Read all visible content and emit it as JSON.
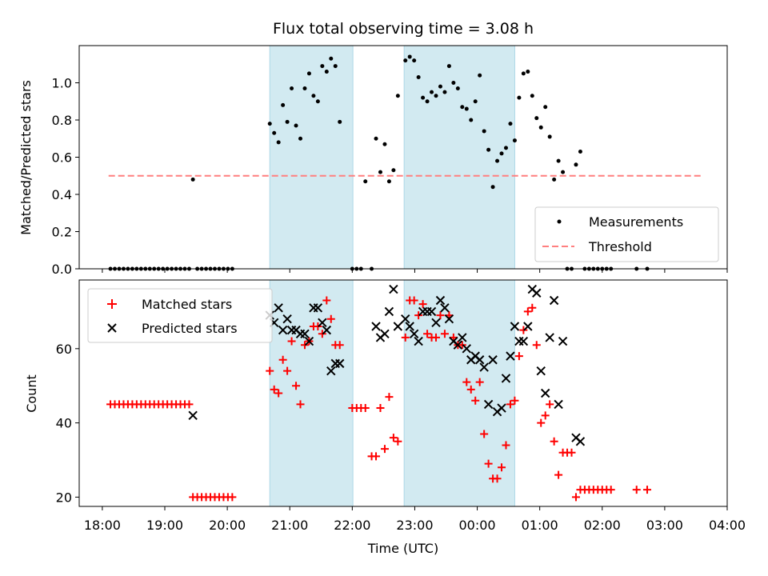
{
  "chart_data": {
    "type": "scatter",
    "title": "Flux total observing time = 3.08 h",
    "xlabel": "Time (UTC)",
    "x_ticks": [
      "18:00",
      "19:00",
      "20:00",
      "21:00",
      "22:00",
      "23:00",
      "00:00",
      "01:00",
      "02:00",
      "03:00",
      "04:00"
    ],
    "x_range_hours": [
      17.63,
      28.0
    ],
    "shaded_spans": [
      [
        20.68,
        22.01
      ],
      [
        22.83,
        24.6
      ]
    ],
    "shade_color": "#add8e6",
    "top": {
      "ylabel": "Matched/Predicted stars",
      "ylim": [
        0,
        1.2
      ],
      "yticks": [
        "0.0",
        "0.2",
        "0.4",
        "0.6",
        "0.8",
        "1.0"
      ],
      "threshold": {
        "name": "Threshold",
        "value": 0.5,
        "x_range": [
          18.1,
          27.6
        ],
        "color": "#ff7f7f"
      },
      "measurements_name": "Measurements",
      "measurements_color": "#000000",
      "measurements": [
        [
          18.13,
          0
        ],
        [
          18.2,
          0
        ],
        [
          18.27,
          0
        ],
        [
          18.34,
          0
        ],
        [
          18.41,
          0
        ],
        [
          18.48,
          0
        ],
        [
          18.55,
          0
        ],
        [
          18.62,
          0
        ],
        [
          18.69,
          0
        ],
        [
          18.76,
          0
        ],
        [
          18.83,
          0
        ],
        [
          18.9,
          0
        ],
        [
          18.97,
          0
        ],
        [
          19.04,
          0
        ],
        [
          19.11,
          0
        ],
        [
          19.18,
          0
        ],
        [
          19.25,
          0
        ],
        [
          19.32,
          0
        ],
        [
          19.39,
          0
        ],
        [
          19.45,
          0.48
        ],
        [
          19.52,
          0
        ],
        [
          19.59,
          0
        ],
        [
          19.66,
          0
        ],
        [
          19.73,
          0
        ],
        [
          19.8,
          0
        ],
        [
          19.87,
          0
        ],
        [
          19.94,
          0
        ],
        [
          20.01,
          0
        ],
        [
          20.08,
          0
        ],
        [
          20.68,
          0.78
        ],
        [
          20.75,
          0.73
        ],
        [
          20.82,
          0.68
        ],
        [
          20.89,
          0.88
        ],
        [
          20.96,
          0.79
        ],
        [
          21.03,
          0.97
        ],
        [
          21.1,
          0.77
        ],
        [
          21.17,
          0.7
        ],
        [
          21.24,
          0.97
        ],
        [
          21.31,
          1.05
        ],
        [
          21.38,
          0.93
        ],
        [
          21.45,
          0.9
        ],
        [
          21.52,
          1.09
        ],
        [
          21.59,
          1.06
        ],
        [
          21.66,
          1.13
        ],
        [
          21.73,
          1.09
        ],
        [
          21.8,
          0.79
        ],
        [
          22.0,
          0
        ],
        [
          22.07,
          0
        ],
        [
          22.14,
          0
        ],
        [
          22.21,
          0.47
        ],
        [
          22.31,
          0
        ],
        [
          22.38,
          0.7
        ],
        [
          22.45,
          0.52
        ],
        [
          22.52,
          0.67
        ],
        [
          22.59,
          0.47
        ],
        [
          22.66,
          0.53
        ],
        [
          22.73,
          0.93
        ],
        [
          22.85,
          1.12
        ],
        [
          22.92,
          1.14
        ],
        [
          22.99,
          1.12
        ],
        [
          23.06,
          1.03
        ],
        [
          23.13,
          0.92
        ],
        [
          23.2,
          0.9
        ],
        [
          23.27,
          0.95
        ],
        [
          23.34,
          0.93
        ],
        [
          23.41,
          0.98
        ],
        [
          23.48,
          0.95
        ],
        [
          23.55,
          1.09
        ],
        [
          23.62,
          1.0
        ],
        [
          23.69,
          0.97
        ],
        [
          23.76,
          0.87
        ],
        [
          23.83,
          0.86
        ],
        [
          23.9,
          0.8
        ],
        [
          23.97,
          0.9
        ],
        [
          24.04,
          1.04
        ],
        [
          24.11,
          0.74
        ],
        [
          24.18,
          0.64
        ],
        [
          24.25,
          0.44
        ],
        [
          24.32,
          0.58
        ],
        [
          24.39,
          0.62
        ],
        [
          24.46,
          0.65
        ],
        [
          24.53,
          0.78
        ],
        [
          24.6,
          0.69
        ],
        [
          24.67,
          0.92
        ],
        [
          24.74,
          1.05
        ],
        [
          24.81,
          1.06
        ],
        [
          24.88,
          0.93
        ],
        [
          24.95,
          0.81
        ],
        [
          25.02,
          0.76
        ],
        [
          25.09,
          0.87
        ],
        [
          25.16,
          0.71
        ],
        [
          25.23,
          0.48
        ],
        [
          25.3,
          0.58
        ],
        [
          25.37,
          0.52
        ],
        [
          25.44,
          0
        ],
        [
          25.51,
          0
        ],
        [
          25.58,
          0.56
        ],
        [
          25.65,
          0.63
        ],
        [
          25.72,
          0
        ],
        [
          25.79,
          0
        ],
        [
          25.86,
          0
        ],
        [
          25.93,
          0
        ],
        [
          26.0,
          0
        ],
        [
          26.07,
          0
        ],
        [
          26.14,
          0
        ],
        [
          26.55,
          0
        ],
        [
          26.72,
          0
        ]
      ]
    },
    "bottom": {
      "ylabel": "Count",
      "ylim": [
        17.5,
        78.5
      ],
      "yticks": [
        "20",
        "40",
        "60"
      ],
      "series": [
        {
          "name": "Matched stars",
          "marker": "plus",
          "color": "#ff0000",
          "points": [
            [
              18.13,
              45
            ],
            [
              18.2,
              45
            ],
            [
              18.27,
              45
            ],
            [
              18.34,
              45
            ],
            [
              18.41,
              45
            ],
            [
              18.48,
              45
            ],
            [
              18.55,
              45
            ],
            [
              18.62,
              45
            ],
            [
              18.69,
              45
            ],
            [
              18.76,
              45
            ],
            [
              18.83,
              45
            ],
            [
              18.9,
              45
            ],
            [
              18.97,
              45
            ],
            [
              19.04,
              45
            ],
            [
              19.11,
              45
            ],
            [
              19.18,
              45
            ],
            [
              19.25,
              45
            ],
            [
              19.32,
              45
            ],
            [
              19.39,
              45
            ],
            [
              19.45,
              20
            ],
            [
              19.52,
              20
            ],
            [
              19.59,
              20
            ],
            [
              19.66,
              20
            ],
            [
              19.73,
              20
            ],
            [
              19.8,
              20
            ],
            [
              19.87,
              20
            ],
            [
              19.94,
              20
            ],
            [
              20.01,
              20
            ],
            [
              20.08,
              20
            ],
            [
              20.68,
              54
            ],
            [
              20.75,
              49
            ],
            [
              20.82,
              48
            ],
            [
              20.89,
              57
            ],
            [
              20.96,
              54
            ],
            [
              21.03,
              62
            ],
            [
              21.1,
              50
            ],
            [
              21.17,
              45
            ],
            [
              21.24,
              61
            ],
            [
              21.31,
              62
            ],
            [
              21.38,
              66
            ],
            [
              21.45,
              66
            ],
            [
              21.52,
              64
            ],
            [
              21.59,
              73
            ],
            [
              21.66,
              68
            ],
            [
              21.73,
              61
            ],
            [
              21.8,
              61
            ],
            [
              22.0,
              44
            ],
            [
              22.07,
              44
            ],
            [
              22.14,
              44
            ],
            [
              22.21,
              44
            ],
            [
              22.31,
              31
            ],
            [
              22.38,
              31
            ],
            [
              22.45,
              44
            ],
            [
              22.52,
              33
            ],
            [
              22.59,
              47
            ],
            [
              22.66,
              36
            ],
            [
              22.73,
              35
            ],
            [
              22.85,
              63
            ],
            [
              22.92,
              73
            ],
            [
              22.99,
              73
            ],
            [
              23.06,
              69
            ],
            [
              23.13,
              72
            ],
            [
              23.2,
              64
            ],
            [
              23.27,
              63
            ],
            [
              23.34,
              63
            ],
            [
              23.41,
              69
            ],
            [
              23.48,
              64
            ],
            [
              23.55,
              69
            ],
            [
              23.62,
              63
            ],
            [
              23.69,
              61
            ],
            [
              23.76,
              61
            ],
            [
              23.83,
              51
            ],
            [
              23.9,
              49
            ],
            [
              23.97,
              46
            ],
            [
              24.04,
              51
            ],
            [
              24.11,
              37
            ],
            [
              24.18,
              29
            ],
            [
              24.25,
              25
            ],
            [
              24.32,
              25
            ],
            [
              24.39,
              28
            ],
            [
              24.46,
              34
            ],
            [
              24.53,
              45
            ],
            [
              24.6,
              46
            ],
            [
              24.67,
              58
            ],
            [
              24.74,
              65
            ],
            [
              24.81,
              70
            ],
            [
              24.88,
              71
            ],
            [
              24.95,
              61
            ],
            [
              25.02,
              40
            ],
            [
              25.09,
              42
            ],
            [
              25.16,
              45
            ],
            [
              25.23,
              35
            ],
            [
              25.3,
              26
            ],
            [
              25.37,
              32
            ],
            [
              25.44,
              32
            ],
            [
              25.51,
              32
            ],
            [
              25.58,
              20
            ],
            [
              25.65,
              22
            ],
            [
              25.72,
              22
            ],
            [
              25.79,
              22
            ],
            [
              25.86,
              22
            ],
            [
              25.93,
              22
            ],
            [
              26.0,
              22
            ],
            [
              26.07,
              22
            ],
            [
              26.14,
              22
            ],
            [
              26.55,
              22
            ],
            [
              26.72,
              22
            ]
          ]
        },
        {
          "name": "Predicted stars",
          "marker": "x",
          "color": "#000000",
          "points": [
            [
              19.45,
              42
            ],
            [
              20.68,
              69
            ],
            [
              20.75,
              67
            ],
            [
              20.82,
              71
            ],
            [
              20.89,
              65
            ],
            [
              20.96,
              68
            ],
            [
              21.03,
              65
            ],
            [
              21.1,
              65
            ],
            [
              21.17,
              64
            ],
            [
              21.24,
              64
            ],
            [
              21.31,
              62
            ],
            [
              21.38,
              71
            ],
            [
              21.45,
              71
            ],
            [
              21.52,
              67
            ],
            [
              21.59,
              65
            ],
            [
              21.66,
              54
            ],
            [
              21.73,
              56
            ],
            [
              21.8,
              56
            ],
            [
              22.38,
              66
            ],
            [
              22.45,
              63
            ],
            [
              22.52,
              64
            ],
            [
              22.59,
              70
            ],
            [
              22.66,
              76
            ],
            [
              22.73,
              66
            ],
            [
              22.85,
              68
            ],
            [
              22.92,
              66
            ],
            [
              22.99,
              64
            ],
            [
              23.06,
              62
            ],
            [
              23.13,
              70
            ],
            [
              23.2,
              70
            ],
            [
              23.27,
              70
            ],
            [
              23.34,
              67
            ],
            [
              23.41,
              73
            ],
            [
              23.48,
              71
            ],
            [
              23.55,
              68
            ],
            [
              23.62,
              62
            ],
            [
              23.69,
              61
            ],
            [
              23.76,
              63
            ],
            [
              23.83,
              60
            ],
            [
              23.9,
              57
            ],
            [
              23.97,
              58
            ],
            [
              24.04,
              57
            ],
            [
              24.11,
              55
            ],
            [
              24.18,
              45
            ],
            [
              24.25,
              57
            ],
            [
              24.32,
              43
            ],
            [
              24.39,
              44
            ],
            [
              24.46,
              52
            ],
            [
              24.53,
              58
            ],
            [
              24.6,
              66
            ],
            [
              24.67,
              62
            ],
            [
              24.74,
              62
            ],
            [
              24.81,
              66
            ],
            [
              24.88,
              76
            ],
            [
              24.95,
              75
            ],
            [
              25.02,
              54
            ],
            [
              25.09,
              48
            ],
            [
              25.16,
              63
            ],
            [
              25.23,
              73
            ],
            [
              25.3,
              45
            ],
            [
              25.37,
              62
            ],
            [
              25.58,
              36
            ],
            [
              25.65,
              35
            ]
          ]
        }
      ]
    }
  }
}
